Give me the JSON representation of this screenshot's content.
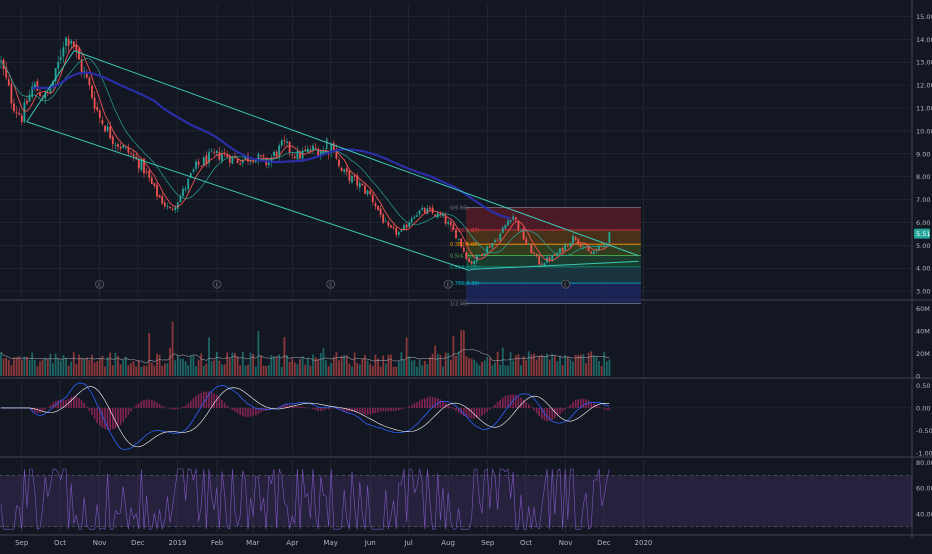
{
  "chart_data": [
    {
      "panel": "price",
      "type": "candlestick",
      "title": "",
      "xlabel": "",
      "ylabel": "",
      "y_ticks": [
        "15.00",
        "14.00",
        "13.00",
        "12.00",
        "11.00",
        "10.00",
        "9.00",
        "8.00",
        "7.00",
        "6.00",
        "5.00",
        "4.00",
        "3.00"
      ],
      "ylim": [
        2.7,
        15.5
      ],
      "last_price_label": "5.51",
      "last_price": 5.51,
      "x_ticks": [
        "Sep",
        "Oct",
        "Nov",
        "Dec",
        "2019",
        "Feb",
        "Mar",
        "Apr",
        "May",
        "Jun",
        "Jul",
        "Aug",
        "Sep",
        "Oct",
        "Nov",
        "Dec",
        "2020"
      ],
      "close_path": [
        [
          "2018-08-15",
          13.1
        ],
        [
          "2018-08-25",
          11.2
        ],
        [
          "2018-09-01",
          10.6
        ],
        [
          "2018-09-10",
          12.0
        ],
        [
          "2018-09-20",
          11.4
        ],
        [
          "2018-09-28",
          12.5
        ],
        [
          "2018-10-04",
          14.0
        ],
        [
          "2018-10-10",
          14.1
        ],
        [
          "2018-10-14",
          13.3
        ],
        [
          "2018-10-22",
          12.2
        ],
        [
          "2018-11-01",
          10.6
        ],
        [
          "2018-11-12",
          9.6
        ],
        [
          "2018-11-25",
          9.0
        ],
        [
          "2018-12-05",
          8.4
        ],
        [
          "2018-12-15",
          7.3
        ],
        [
          "2018-12-26",
          6.5
        ],
        [
          "2019-01-05",
          7.3
        ],
        [
          "2019-01-15",
          8.4
        ],
        [
          "2019-01-25",
          8.8
        ],
        [
          "2019-02-05",
          9.0
        ],
        [
          "2019-02-18",
          8.7
        ],
        [
          "2019-03-01",
          8.9
        ],
        [
          "2019-03-12",
          8.6
        ],
        [
          "2019-03-25",
          9.4
        ],
        [
          "2019-04-05",
          8.9
        ],
        [
          "2019-04-18",
          9.2
        ],
        [
          "2019-04-28",
          9.1
        ],
        [
          "2019-05-03",
          9.5
        ],
        [
          "2019-05-08",
          8.3
        ],
        [
          "2019-05-20",
          7.8
        ],
        [
          "2019-06-01",
          7.2
        ],
        [
          "2019-06-15",
          5.7
        ],
        [
          "2019-06-25",
          5.5
        ],
        [
          "2019-07-05",
          6.4
        ],
        [
          "2019-07-15",
          6.5
        ],
        [
          "2019-07-28",
          6.2
        ],
        [
          "2019-08-08",
          5.4
        ],
        [
          "2019-08-18",
          4.2
        ],
        [
          "2019-08-28",
          4.7
        ],
        [
          "2019-09-10",
          5.4
        ],
        [
          "2019-09-20",
          6.4
        ],
        [
          "2019-10-01",
          5.1
        ],
        [
          "2019-10-12",
          4.2
        ],
        [
          "2019-10-25",
          4.6
        ],
        [
          "2019-11-08",
          5.4
        ],
        [
          "2019-11-20",
          4.6
        ],
        [
          "2019-12-01",
          5.0
        ],
        [
          "2019-12-06",
          5.51
        ]
      ],
      "fib_levels": [
        {
          "label": "0(6.66)",
          "value": 6.66,
          "color": "#787b86"
        },
        {
          "label": "0.236(5.67)",
          "value": 5.67,
          "color": "#f23645"
        },
        {
          "label": "0.382(5.05)",
          "value": 5.05,
          "color": "#ff9800"
        },
        {
          "label": "0.5(4.56)",
          "value": 4.56,
          "color": "#4caf50"
        },
        {
          "label": "0.618(4.06)",
          "value": 4.06,
          "color": "#089981"
        },
        {
          "label": "0.786(3.35)",
          "value": 3.35,
          "color": "#00bcd4"
        },
        {
          "label": "1(2.46)",
          "value": 2.46,
          "color": "#787b86"
        }
      ],
      "channel_color": "#3bc9b8",
      "colors": {
        "up": "#26a69a",
        "down": "#ef5350",
        "ema_fast": "#ef5350",
        "sma": "#26a69a",
        "sma_long": "#2a2fa8",
        "background": "#131722",
        "grid": "#2a2e39",
        "axis_text": "#b2b5be"
      }
    },
    {
      "panel": "volume",
      "type": "bar",
      "y_ticks": [
        "60M",
        "40M",
        "20M",
        "0"
      ],
      "ylim": [
        0,
        65000000
      ]
    },
    {
      "panel": "macd",
      "type": "histogram+line",
      "y_ticks": [
        "0.50",
        "0.00",
        "-0.50",
        "-1.00"
      ],
      "ylim": [
        -1.05,
        0.6
      ]
    },
    {
      "panel": "rsi",
      "type": "line",
      "y_ticks": [
        "80.00",
        "60.00",
        "40.00"
      ],
      "ylim": [
        25,
        82
      ],
      "bands": [
        70,
        30
      ]
    }
  ]
}
